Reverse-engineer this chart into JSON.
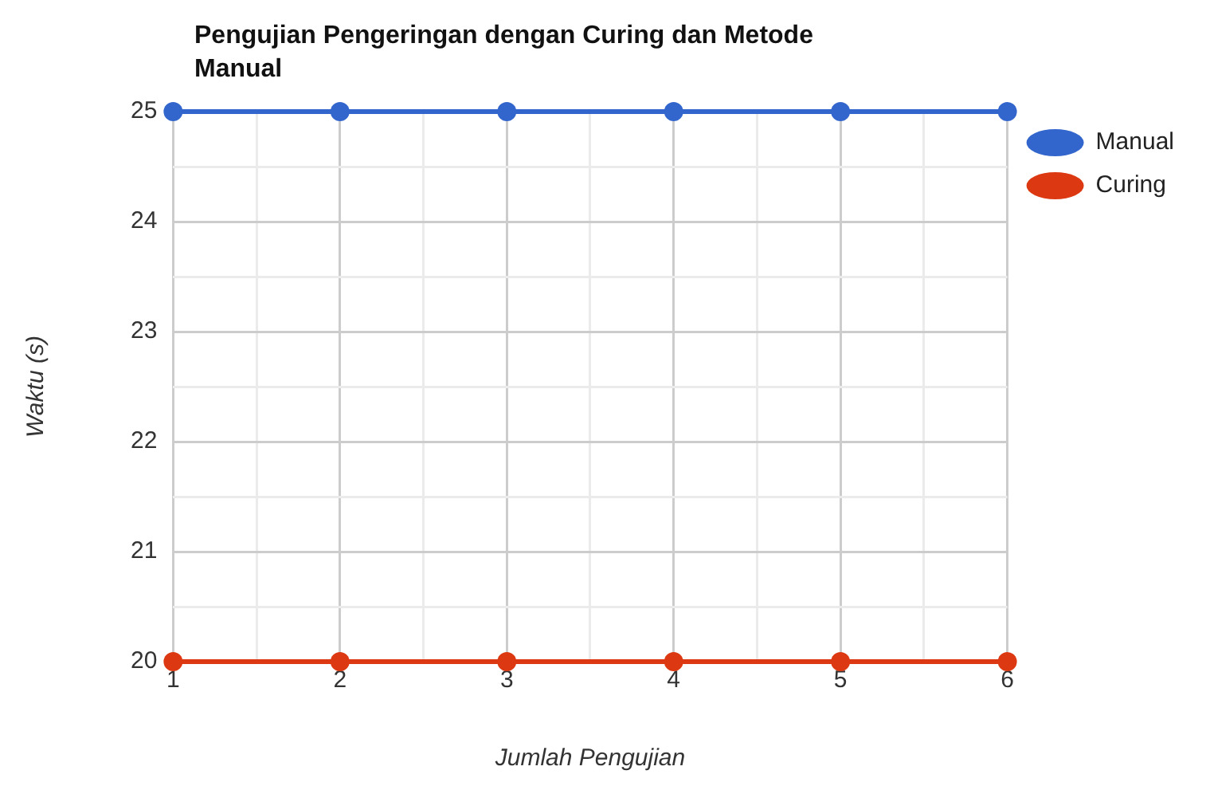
{
  "chart_data": {
    "type": "line",
    "title": "Pengujian Pengeringan dengan Curing dan Metode Manual",
    "xlabel": "Jumlah Pengujian",
    "ylabel": "Waktu (s)",
    "x": [
      1,
      2,
      3,
      4,
      5,
      6
    ],
    "series": [
      {
        "name": "Manual",
        "color": "#3366cc",
        "values": [
          25,
          25,
          25,
          25,
          25,
          25
        ]
      },
      {
        "name": "Curing",
        "color": "#dc3912",
        "values": [
          20,
          20,
          20,
          20,
          20,
          20
        ]
      }
    ],
    "xlim": [
      1,
      6
    ],
    "xticks": [
      1,
      {
        "value": 1.5,
        "label": null
      },
      2,
      {
        "value": 2.5,
        "label": null
      },
      3,
      {
        "value": 3.5,
        "label": null
      },
      4,
      {
        "value": 4.5,
        "label": null
      },
      5,
      {
        "value": 5.5,
        "label": null
      },
      6
    ],
    "ylim": [
      20,
      25
    ],
    "yticks": [
      20,
      {
        "value": 20.5,
        "label": null
      },
      21,
      {
        "value": 21.5,
        "label": null
      },
      22,
      {
        "value": 22.5,
        "label": null
      },
      23,
      {
        "value": 23.5,
        "label": null
      },
      24,
      {
        "value": 24.5,
        "label": null
      },
      25
    ],
    "grid": true,
    "legend": "top right",
    "marker": "circle",
    "line_style": "solid"
  }
}
